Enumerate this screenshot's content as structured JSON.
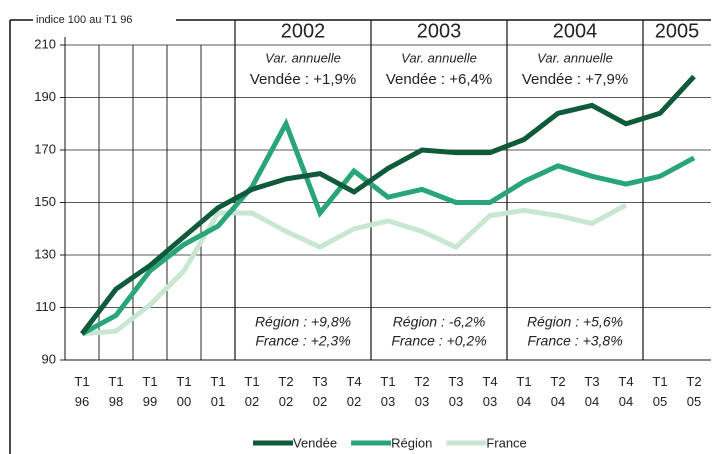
{
  "chart_data": {
    "type": "line",
    "ylabel": "indice 100 au T1 96",
    "categories": [
      [
        "T1",
        "96"
      ],
      [
        "T1",
        "98"
      ],
      [
        "T1",
        "99"
      ],
      [
        "T1",
        "00"
      ],
      [
        "T1",
        "01"
      ],
      [
        "T1",
        "02"
      ],
      [
        "T2",
        "02"
      ],
      [
        "T3",
        "02"
      ],
      [
        "T4",
        "02"
      ],
      [
        "T1",
        "03"
      ],
      [
        "T2",
        "03"
      ],
      [
        "T3",
        "03"
      ],
      [
        "T4",
        "03"
      ],
      [
        "T1",
        "04"
      ],
      [
        "T2",
        "04"
      ],
      [
        "T3",
        "04"
      ],
      [
        "T4",
        "04"
      ],
      [
        "T1",
        "05"
      ],
      [
        "T2",
        "05"
      ]
    ],
    "series": [
      {
        "name": "Vendée",
        "color": "#0f5a3a",
        "values": [
          100,
          117,
          126,
          137,
          148,
          155,
          159,
          161,
          154,
          163,
          170,
          169,
          169,
          174,
          184,
          187,
          180,
          184,
          198
        ]
      },
      {
        "name": "Région",
        "color": "#2aa57a",
        "values": [
          100,
          107,
          124,
          134,
          141,
          156,
          180,
          146,
          162,
          152,
          155,
          150,
          150,
          158,
          164,
          160,
          157,
          160,
          167
        ]
      },
      {
        "name": "France",
        "color": "#c9e6d3",
        "values": [
          100,
          101,
          111,
          124,
          146,
          146,
          139,
          133,
          140,
          143,
          139,
          133,
          145,
          147,
          145,
          142,
          149,
          null,
          null
        ]
      }
    ],
    "ylim": [
      90,
      210
    ],
    "yticks": [
      90,
      110,
      130,
      150,
      170,
      190,
      210
    ],
    "grid": true,
    "years": [
      "2002",
      "2003",
      "2004",
      "2005"
    ],
    "annotations": [
      {
        "title": "Var. annuelle",
        "vendee": "Vendée : +1,9%",
        "region": "Région : +9,8%",
        "france": "France : +2,3%"
      },
      {
        "title": "Var. annuelle",
        "vendee": "Vendée : +6,4%",
        "region": "Région : -6,2%",
        "france": "France : +0,2%"
      },
      {
        "title": "Var. annuelle",
        "vendee": "Vendée : +7,9%",
        "region": "Région : +5,6%",
        "france": "France : +3,8%"
      }
    ]
  }
}
